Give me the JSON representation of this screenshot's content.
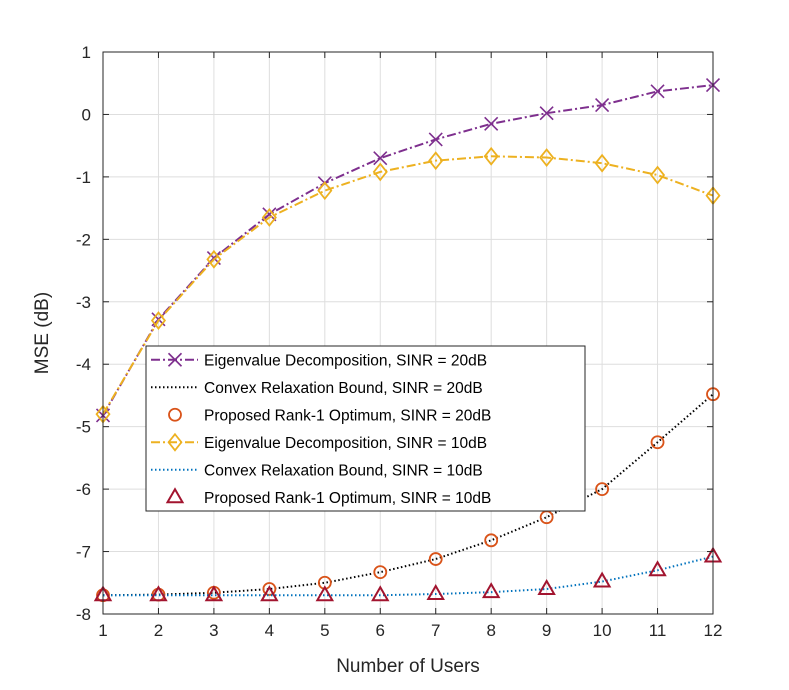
{
  "chart_data": {
    "type": "line",
    "title": "",
    "xlabel": "Number of Users",
    "ylabel": "MSE (dB)",
    "xlim": [
      1,
      12
    ],
    "ylim": [
      -8,
      1
    ],
    "xticks": [
      1,
      2,
      3,
      4,
      5,
      6,
      7,
      8,
      9,
      10,
      11,
      12
    ],
    "yticks": [
      1,
      0,
      -1,
      -2,
      -3,
      -4,
      -5,
      -6,
      -7,
      -8
    ],
    "grid": true,
    "legend_position": "center-left",
    "x": [
      1,
      2,
      3,
      4,
      5,
      6,
      7,
      8,
      9,
      10,
      11,
      12
    ],
    "series": [
      {
        "name": "Eigenvalue Decomposition, SINR = 20dB",
        "color": "#7E2F8E",
        "line": "dashdot",
        "marker": "x",
        "values": [
          -4.82,
          -3.28,
          -2.3,
          -1.6,
          -1.1,
          -0.7,
          -0.4,
          -0.15,
          0.02,
          0.15,
          0.37,
          0.47
        ]
      },
      {
        "name": "Convex Relaxation Bound, SINR = 20dB",
        "color": "#000000",
        "line": "dotted",
        "marker": "none",
        "values": [
          -7.7,
          -7.69,
          -7.66,
          -7.6,
          -7.5,
          -7.33,
          -7.12,
          -6.82,
          -6.45,
          -6.0,
          -5.25,
          -4.48
        ]
      },
      {
        "name": "Proposed Rank-1 Optimum, SINR = 20dB",
        "color": "#D95319",
        "line": "none",
        "marker": "circle",
        "values": [
          -7.7,
          -7.69,
          -7.66,
          -7.6,
          -7.5,
          -7.33,
          -7.12,
          -6.82,
          -6.45,
          -6.0,
          -5.25,
          -4.48
        ]
      },
      {
        "name": "Eigenvalue Decomposition, SINR = 10dB",
        "color": "#EDB120",
        "line": "dashdot",
        "marker": "diamond",
        "values": [
          -4.8,
          -3.3,
          -2.32,
          -1.65,
          -1.22,
          -0.92,
          -0.74,
          -0.67,
          -0.69,
          -0.78,
          -0.97,
          -1.3
        ]
      },
      {
        "name": "Convex Relaxation Bound, SINR = 10dB",
        "color": "#0072BD",
        "line": "dotted",
        "marker": "none",
        "values": [
          -7.7,
          -7.7,
          -7.7,
          -7.7,
          -7.7,
          -7.7,
          -7.68,
          -7.65,
          -7.6,
          -7.48,
          -7.3,
          -7.08
        ]
      },
      {
        "name": "Proposed Rank-1 Optimum, SINR = 10dB",
        "color": "#A2142F",
        "line": "none",
        "marker": "triangle",
        "values": [
          -7.7,
          -7.7,
          -7.7,
          -7.7,
          -7.7,
          -7.7,
          -7.68,
          -7.65,
          -7.6,
          -7.48,
          -7.3,
          -7.08
        ]
      }
    ]
  }
}
